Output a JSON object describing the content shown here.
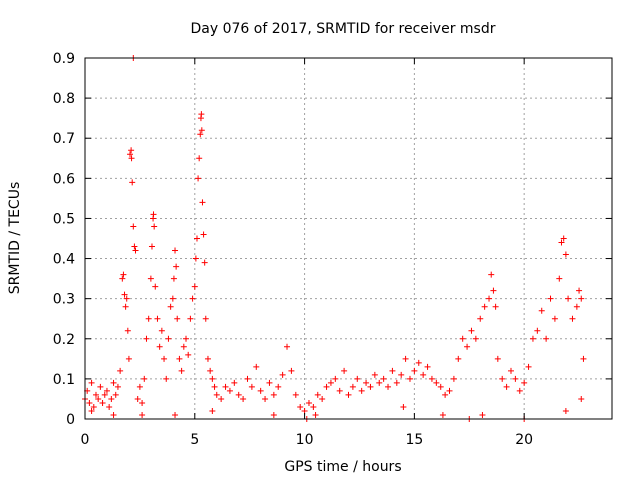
{
  "chart_data": {
    "type": "scatter",
    "title": "Day 076 of 2017, SRMTID for receiver msdr",
    "xlabel": "GPS time / hours",
    "ylabel": "SRMTID / TECUs",
    "xlim": [
      0,
      24
    ],
    "ylim": [
      0,
      0.9
    ],
    "xticks": [
      0,
      5,
      10,
      15,
      20
    ],
    "yticks": [
      0,
      0.1,
      0.2,
      0.3,
      0.4,
      0.5,
      0.6,
      0.7,
      0.8,
      0.9
    ],
    "x_tick_labels": [
      "0",
      "5",
      "10",
      "15",
      "20"
    ],
    "y_tick_labels": [
      "0",
      "0.1",
      "0.2",
      "0.3",
      "0.4",
      "0.5",
      "0.6",
      "0.7",
      "0.8",
      "0.9"
    ],
    "grid": true,
    "marker": "plus",
    "series": [
      {
        "color": "#ff0000",
        "points": [
          [
            0.0,
            0.05
          ],
          [
            0.1,
            0.07
          ],
          [
            0.2,
            0.04
          ],
          [
            0.3,
            0.09
          ],
          [
            0.4,
            0.03
          ],
          [
            0.5,
            0.06
          ],
          [
            0.6,
            0.05
          ],
          [
            0.7,
            0.08
          ],
          [
            0.8,
            0.04
          ],
          [
            0.9,
            0.06
          ],
          [
            1.0,
            0.07
          ],
          [
            1.1,
            0.03
          ],
          [
            1.2,
            0.05
          ],
          [
            1.3,
            0.09
          ],
          [
            1.4,
            0.06
          ],
          [
            1.5,
            0.08
          ],
          [
            1.6,
            0.12
          ],
          [
            1.7,
            0.35
          ],
          [
            1.75,
            0.36
          ],
          [
            1.8,
            0.31
          ],
          [
            1.85,
            0.28
          ],
          [
            1.9,
            0.3
          ],
          [
            1.95,
            0.22
          ],
          [
            2.0,
            0.15
          ],
          [
            2.05,
            0.66
          ],
          [
            2.1,
            0.67
          ],
          [
            2.12,
            0.65
          ],
          [
            2.15,
            0.59
          ],
          [
            2.2,
            0.48
          ],
          [
            2.25,
            0.43
          ],
          [
            2.3,
            0.42
          ],
          [
            2.2,
            0.9
          ],
          [
            2.4,
            0.05
          ],
          [
            2.5,
            0.08
          ],
          [
            2.6,
            0.04
          ],
          [
            2.7,
            0.1
          ],
          [
            2.8,
            0.2
          ],
          [
            2.9,
            0.25
          ],
          [
            3.0,
            0.35
          ],
          [
            3.05,
            0.43
          ],
          [
            3.1,
            0.5
          ],
          [
            3.12,
            0.51
          ],
          [
            3.15,
            0.48
          ],
          [
            3.2,
            0.33
          ],
          [
            3.3,
            0.25
          ],
          [
            3.4,
            0.18
          ],
          [
            3.5,
            0.22
          ],
          [
            3.6,
            0.15
          ],
          [
            3.7,
            0.1
          ],
          [
            3.8,
            0.2
          ],
          [
            3.9,
            0.28
          ],
          [
            4.0,
            0.3
          ],
          [
            4.05,
            0.35
          ],
          [
            4.1,
            0.42
          ],
          [
            4.15,
            0.38
          ],
          [
            4.2,
            0.25
          ],
          [
            4.3,
            0.15
          ],
          [
            4.4,
            0.12
          ],
          [
            4.5,
            0.18
          ],
          [
            4.6,
            0.2
          ],
          [
            4.7,
            0.16
          ],
          [
            4.8,
            0.25
          ],
          [
            4.9,
            0.3
          ],
          [
            5.0,
            0.33
          ],
          [
            5.05,
            0.4
          ],
          [
            5.1,
            0.45
          ],
          [
            5.15,
            0.6
          ],
          [
            5.2,
            0.65
          ],
          [
            5.25,
            0.71
          ],
          [
            5.28,
            0.75
          ],
          [
            5.3,
            0.76
          ],
          [
            5.32,
            0.72
          ],
          [
            5.35,
            0.54
          ],
          [
            5.4,
            0.46
          ],
          [
            5.45,
            0.39
          ],
          [
            5.5,
            0.25
          ],
          [
            5.6,
            0.15
          ],
          [
            5.7,
            0.12
          ],
          [
            5.8,
            0.1
          ],
          [
            5.9,
            0.08
          ],
          [
            6.0,
            0.06
          ],
          [
            6.2,
            0.05
          ],
          [
            6.4,
            0.08
          ],
          [
            6.6,
            0.07
          ],
          [
            6.8,
            0.09
          ],
          [
            7.0,
            0.06
          ],
          [
            7.2,
            0.05
          ],
          [
            7.4,
            0.1
          ],
          [
            7.6,
            0.08
          ],
          [
            7.8,
            0.13
          ],
          [
            8.0,
            0.07
          ],
          [
            8.2,
            0.05
          ],
          [
            8.4,
            0.09
          ],
          [
            8.6,
            0.06
          ],
          [
            8.8,
            0.08
          ],
          [
            9.0,
            0.11
          ],
          [
            9.2,
            0.18
          ],
          [
            9.4,
            0.12
          ],
          [
            9.6,
            0.06
          ],
          [
            9.8,
            0.03
          ],
          [
            10.0,
            0.02
          ],
          [
            10.2,
            0.04
          ],
          [
            10.4,
            0.03
          ],
          [
            10.6,
            0.06
          ],
          [
            10.8,
            0.05
          ],
          [
            11.0,
            0.08
          ],
          [
            11.2,
            0.09
          ],
          [
            11.4,
            0.1
          ],
          [
            11.6,
            0.07
          ],
          [
            11.8,
            0.12
          ],
          [
            12.0,
            0.06
          ],
          [
            12.2,
            0.08
          ],
          [
            12.4,
            0.1
          ],
          [
            12.6,
            0.07
          ],
          [
            12.8,
            0.09
          ],
          [
            13.0,
            0.08
          ],
          [
            13.2,
            0.11
          ],
          [
            13.4,
            0.09
          ],
          [
            13.6,
            0.1
          ],
          [
            13.8,
            0.08
          ],
          [
            14.0,
            0.12
          ],
          [
            14.2,
            0.09
          ],
          [
            14.4,
            0.11
          ],
          [
            14.6,
            0.15
          ],
          [
            14.8,
            0.1
          ],
          [
            15.0,
            0.12
          ],
          [
            15.2,
            0.14
          ],
          [
            15.4,
            0.11
          ],
          [
            15.6,
            0.13
          ],
          [
            15.8,
            0.1
          ],
          [
            16.0,
            0.09
          ],
          [
            16.2,
            0.08
          ],
          [
            16.4,
            0.06
          ],
          [
            16.6,
            0.07
          ],
          [
            16.8,
            0.1
          ],
          [
            17.0,
            0.15
          ],
          [
            17.2,
            0.2
          ],
          [
            17.4,
            0.18
          ],
          [
            17.6,
            0.22
          ],
          [
            17.8,
            0.2
          ],
          [
            18.0,
            0.25
          ],
          [
            18.2,
            0.28
          ],
          [
            18.4,
            0.3
          ],
          [
            18.5,
            0.36
          ],
          [
            18.6,
            0.32
          ],
          [
            18.7,
            0.28
          ],
          [
            18.8,
            0.15
          ],
          [
            19.0,
            0.1
          ],
          [
            19.2,
            0.08
          ],
          [
            19.4,
            0.12
          ],
          [
            19.6,
            0.1
          ],
          [
            19.8,
            0.07
          ],
          [
            20.0,
            0.09
          ],
          [
            20.2,
            0.13
          ],
          [
            20.4,
            0.2
          ],
          [
            20.6,
            0.22
          ],
          [
            20.8,
            0.27
          ],
          [
            21.0,
            0.2
          ],
          [
            21.2,
            0.3
          ],
          [
            21.4,
            0.25
          ],
          [
            21.6,
            0.35
          ],
          [
            21.7,
            0.44
          ],
          [
            21.8,
            0.45
          ],
          [
            21.9,
            0.41
          ],
          [
            22.0,
            0.3
          ],
          [
            22.2,
            0.25
          ],
          [
            22.4,
            0.28
          ],
          [
            22.5,
            0.32
          ],
          [
            22.6,
            0.3
          ],
          [
            22.7,
            0.15
          ],
          [
            0.3,
            0.02
          ],
          [
            1.3,
            0.01
          ],
          [
            2.6,
            0.01
          ],
          [
            4.1,
            0.01
          ],
          [
            5.8,
            0.02
          ],
          [
            8.6,
            0.01
          ],
          [
            10.1,
            0.0
          ],
          [
            10.5,
            0.01
          ],
          [
            14.5,
            0.03
          ],
          [
            16.3,
            0.01
          ],
          [
            17.5,
            0.0
          ],
          [
            18.1,
            0.01
          ],
          [
            20.0,
            0.0
          ],
          [
            21.9,
            0.02
          ],
          [
            22.6,
            0.05
          ]
        ]
      }
    ]
  }
}
